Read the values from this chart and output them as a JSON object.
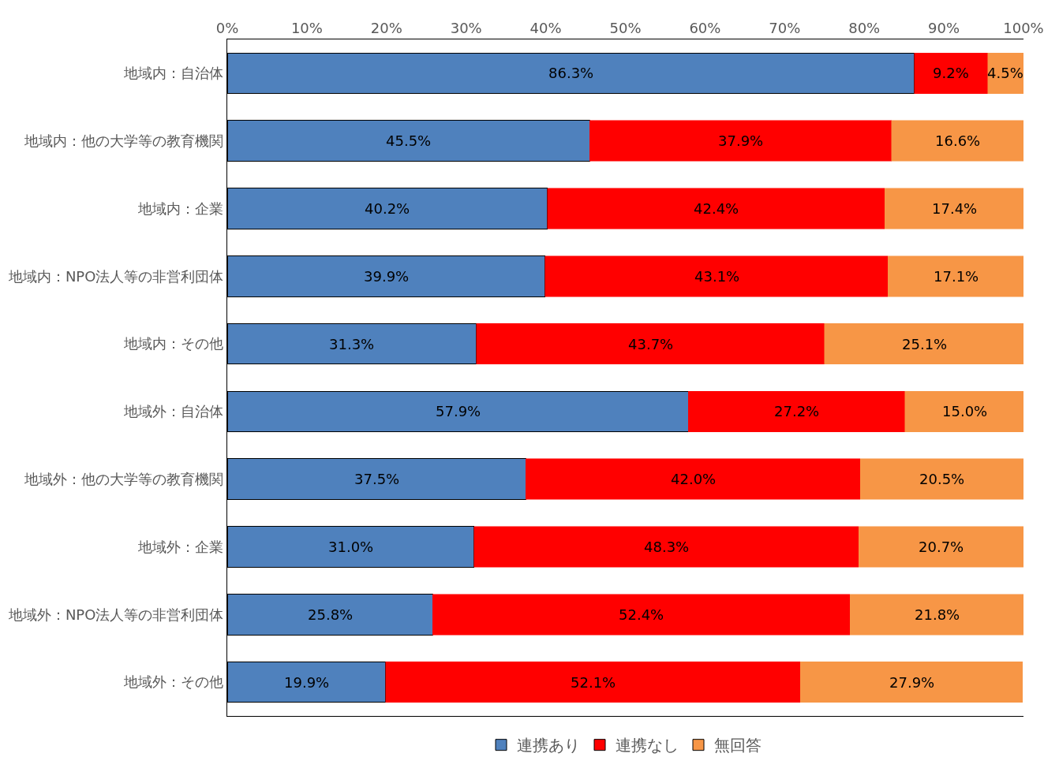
{
  "chart_data": {
    "type": "bar",
    "orientation": "horizontal",
    "stacked": true,
    "categories": [
      "地域内：自治体",
      "地域内：他の大学等の教育機関",
      "地域内：企業",
      "地域内：NPO法人等の非営利団体",
      "地域内：その他",
      "地域外：自治体",
      "地域外：他の大学等の教育機関",
      "地域外：企業",
      "地域外：NPO法人等の非営利団体",
      "地域外：その他"
    ],
    "series": [
      {
        "name": "連携あり",
        "color": "#4f81bd",
        "values": [
          86.3,
          45.5,
          40.2,
          39.9,
          31.3,
          57.9,
          37.5,
          31.0,
          25.8,
          19.9
        ],
        "value_labels": [
          "86.3%",
          "45.5%",
          "40.2%",
          "39.9%",
          "31.3%",
          "57.9%",
          "37.5%",
          "31.0%",
          "25.8%",
          "19.9%"
        ]
      },
      {
        "name": "連携なし",
        "color": "#ff0000",
        "values": [
          9.2,
          37.9,
          42.4,
          43.1,
          43.7,
          27.2,
          42.0,
          48.3,
          52.4,
          52.1
        ],
        "value_labels": [
          "9.2%",
          "37.9%",
          "42.4%",
          "43.1%",
          "43.7%",
          "27.2%",
          "42.0%",
          "48.3%",
          "52.4%",
          "52.1%"
        ]
      },
      {
        "name": "無回答",
        "color": "#f79646",
        "values": [
          4.5,
          16.6,
          17.4,
          17.1,
          25.1,
          15.0,
          20.5,
          20.7,
          21.8,
          27.9
        ],
        "value_labels": [
          "4.5%",
          "16.6%",
          "17.4%",
          "17.1%",
          "25.1%",
          "15.0%",
          "20.5%",
          "20.7%",
          "21.8%",
          "27.9%"
        ]
      }
    ],
    "xlim": [
      0,
      100
    ],
    "xticks": [
      {
        "value": 0,
        "label": "0%"
      },
      {
        "value": 10,
        "label": "10%"
      },
      {
        "value": 20,
        "label": "20%"
      },
      {
        "value": 30,
        "label": "30%"
      },
      {
        "value": 40,
        "label": "40%"
      },
      {
        "value": 50,
        "label": "50%"
      },
      {
        "value": 60,
        "label": "60%"
      },
      {
        "value": 70,
        "label": "70%"
      },
      {
        "value": 80,
        "label": "80%"
      },
      {
        "value": 90,
        "label": "90%"
      },
      {
        "value": 100,
        "label": "100%"
      }
    ],
    "grid": false,
    "legend": "bottom"
  }
}
